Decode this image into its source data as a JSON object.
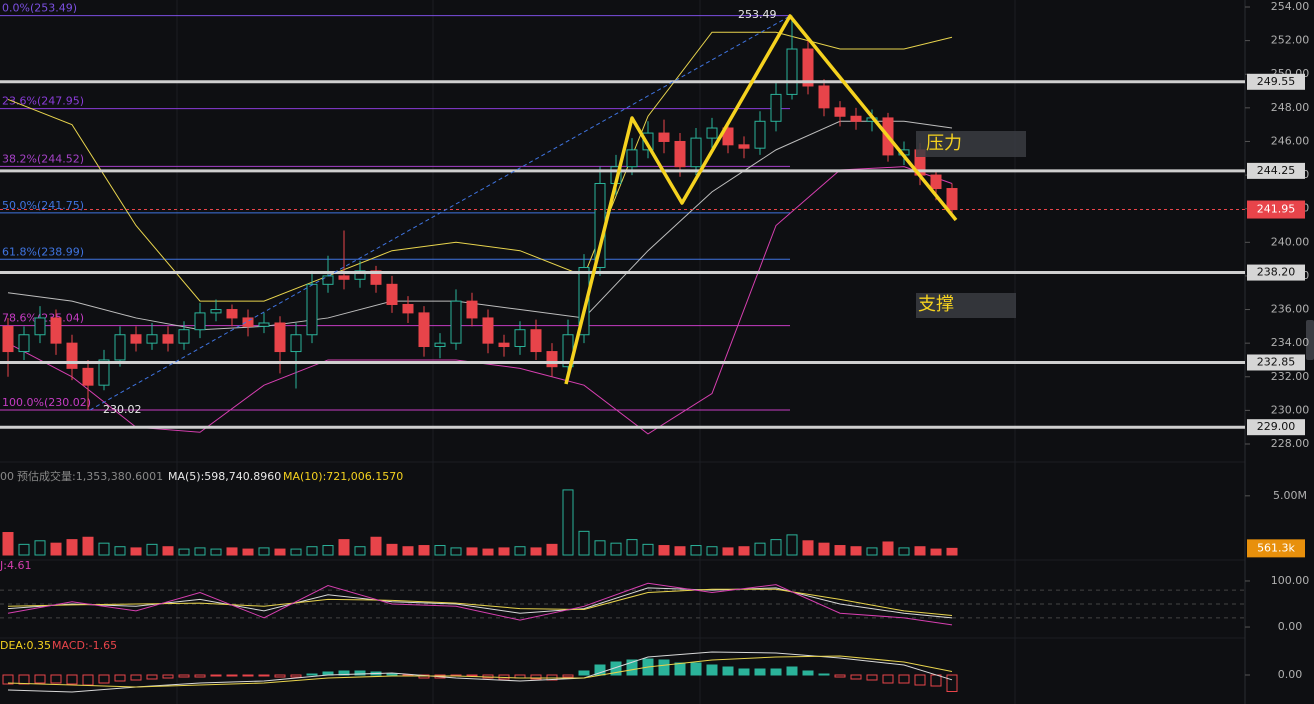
{
  "chart_data": [
    {
      "type": "candlestick",
      "up_color": "#2bb39a",
      "down_color": "#e8444a",
      "ylim": [
        228,
        254
      ],
      "yticks": [
        {
          "value": 228,
          "label": "228.00"
        },
        {
          "value": 230,
          "label": "230.00"
        },
        {
          "value": 232,
          "label": "232.00"
        },
        {
          "value": 234,
          "label": "234.00"
        },
        {
          "value": 236,
          "label": "236.00"
        },
        {
          "value": 238,
          "label": "238.00"
        },
        {
          "value": 240,
          "label": "240.00"
        },
        {
          "value": 242,
          "label": "242.00"
        },
        {
          "value": 244,
          "label": "244.00"
        },
        {
          "value": 246,
          "label": "246.00"
        },
        {
          "value": 248,
          "label": "248.00"
        },
        {
          "value": 250,
          "label": "250.00"
        },
        {
          "value": 252,
          "label": "252.00"
        },
        {
          "value": 254,
          "label": "254.00"
        }
      ],
      "candles": {
        "open": [
          235,
          233.5,
          234.5,
          235.5,
          234,
          232.5,
          231.5,
          233,
          234.5,
          234,
          234.5,
          234,
          234.8,
          235.8,
          236,
          235.5,
          235,
          235.2,
          233.5,
          234.5,
          237.5,
          238,
          237.8,
          238.3,
          237.5,
          236.3,
          235.8,
          233.8,
          234,
          236.5,
          235.5,
          234,
          233.8,
          234.8,
          233.5,
          232.6,
          234.5,
          238.5,
          243.5,
          244.5,
          245.5,
          246.5,
          246,
          244.5,
          246.2,
          246.8,
          245.8,
          245.6,
          247.2,
          248.8,
          251.5,
          249.3,
          248,
          247.5,
          247.2,
          247.4,
          245.2,
          245.5,
          244,
          243.2
        ],
        "high": [
          235.5,
          235,
          236.2,
          236,
          234.5,
          233,
          233.6,
          235,
          235,
          235.2,
          235,
          235.3,
          236.4,
          236.6,
          236.3,
          236,
          235.8,
          235.6,
          235.2,
          238.3,
          239.2,
          240.7,
          238.9,
          238.6,
          238,
          236.8,
          236.2,
          234.6,
          237.2,
          237,
          236,
          234.5,
          235.3,
          235.4,
          234,
          235.4,
          239.3,
          244.5,
          245.2,
          246.2,
          247.2,
          247.3,
          246.5,
          246.8,
          247.4,
          247.2,
          246.3,
          247.8,
          249.6,
          253.49,
          252,
          249.7,
          248.4,
          248,
          247.9,
          247.7,
          246,
          245.9,
          244.3,
          243.5
        ],
        "low": [
          232,
          233,
          234,
          233.3,
          231.8,
          230.02,
          231.2,
          232.6,
          233.5,
          233.6,
          233.5,
          233.6,
          234.3,
          235.3,
          235,
          234.4,
          234.6,
          232.2,
          231.3,
          234,
          237,
          237.2,
          237.3,
          237,
          235.8,
          235.2,
          233.2,
          233.1,
          233.6,
          235,
          233.4,
          233.2,
          233.3,
          233,
          232,
          232.2,
          234,
          238,
          242.8,
          244,
          245,
          245.3,
          243.9,
          244,
          245.6,
          245.3,
          245,
          245.2,
          246.6,
          248.5,
          248.8,
          247.5,
          246.9,
          246.7,
          246.6,
          244.8,
          244.6,
          243.4,
          242.5,
          241.6
        ],
        "close": [
          233.5,
          234.5,
          235.5,
          234,
          232.5,
          231.5,
          233,
          234.5,
          234,
          234.5,
          234,
          234.8,
          235.8,
          236,
          235.5,
          235,
          235.2,
          233.5,
          234.5,
          237.5,
          238,
          237.8,
          238.3,
          237.5,
          236.3,
          235.8,
          233.8,
          234,
          236.5,
          235.5,
          234,
          233.8,
          234.8,
          233.5,
          232.6,
          234.5,
          238.5,
          243.5,
          244.5,
          245.5,
          246.5,
          246,
          244.5,
          246.2,
          246.8,
          245.8,
          245.6,
          247.2,
          248.8,
          251.5,
          249.3,
          248,
          247.5,
          247.2,
          247.4,
          245.2,
          245.5,
          244,
          243.2,
          241.95
        ]
      },
      "bollinger": {
        "x": [
          0,
          4,
          8,
          12,
          16,
          20,
          24,
          28,
          32,
          36,
          40,
          44,
          48,
          52,
          56,
          59
        ],
        "lines": [
          {
            "color": "#e8d44d",
            "values": [
              248.5,
              247,
              241,
              236.5,
              236.5,
              238,
              239.5,
              240,
              239.5,
              238,
              247.5,
              252.5,
              252.5,
              251.5,
              251.5,
              252.2
            ]
          },
          {
            "color": "#bdbdbd",
            "values": [
              237,
              236.5,
              235.5,
              234.8,
              235,
              235.5,
              236.5,
              236.5,
              236,
              235.5,
              239.5,
              243,
              245.5,
              247.2,
              247.2,
              246.8
            ]
          },
          {
            "color": "#d63fb0",
            "values": [
              234,
              232,
              229,
              228.7,
              231.5,
              233,
              233,
              233,
              232.5,
              231.5,
              228.6,
              231,
              241,
              244.3,
              244.5,
              243.5
            ]
          }
        ]
      },
      "fib_levels": [
        {
          "label": "0.0%(253.49)",
          "value": 253.49,
          "color": "#7b4fe0"
        },
        {
          "label": "23.6%(247.95)",
          "value": 247.95,
          "color": "#8a3cd8"
        },
        {
          "label": "38.2%(244.52)",
          "value": 244.52,
          "color": "#a642c8"
        },
        {
          "label": "50.0%(241.75)",
          "value": 241.75,
          "color": "#3f74e0"
        },
        {
          "label": "61.8%(238.99)",
          "value": 238.99,
          "color": "#3f74e0"
        },
        {
          "label": "78.6%(235.04)",
          "value": 235.04,
          "color": "#c53cc3"
        },
        {
          "label": "100.0%(230.02)",
          "value": 230.02,
          "color": "#c53cc3"
        }
      ],
      "levels": [
        249.55,
        244.25,
        {
          "value": 238.2,
          "label": "238.20"
        },
        232.85,
        {
          "value": 229,
          "label": "229.00"
        }
      ],
      "last_price": 241.95,
      "peak_high": 253.49,
      "peak_low": 230.02,
      "annotations": [
        "压力",
        "支撑"
      ]
    },
    {
      "type": "bar",
      "header": [
        "00",
        "预估成交量:1,353,380.6001",
        "MA(5):598,740.8960",
        "MA(10):721,006.1570"
      ],
      "ylim": [
        0,
        6
      ],
      "yticks": [
        {
          "value": 5,
          "label": "5.00M"
        }
      ],
      "values": [
        1.9,
        0.9,
        1.2,
        1.0,
        1.3,
        1.5,
        1.0,
        0.7,
        0.6,
        0.9,
        0.7,
        0.5,
        0.6,
        0.5,
        0.6,
        0.5,
        0.6,
        0.5,
        0.5,
        0.7,
        0.8,
        1.3,
        0.7,
        1.5,
        0.9,
        0.7,
        0.8,
        0.8,
        0.6,
        0.6,
        0.5,
        0.6,
        0.7,
        0.6,
        0.9,
        5.5,
        2.0,
        1.2,
        1.0,
        1.3,
        0.9,
        0.8,
        0.7,
        0.8,
        0.7,
        0.6,
        0.7,
        1.0,
        1.3,
        1.7,
        1.2,
        1.0,
        0.8,
        0.7,
        0.6,
        1.1,
        0.6,
        0.7,
        0.5,
        0.5613
      ],
      "current": {
        "value": 0.5613,
        "label": "561.3k"
      }
    },
    {
      "type": "line",
      "label": "J:4.61",
      "ylim": [
        -39,
        139
      ],
      "yticks": [
        {
          "value": 100,
          "label": "100.00"
        },
        {
          "value": 0,
          "label": "0.00"
        }
      ],
      "ref_lines": [
        80,
        50,
        20
      ],
      "x": [
        0,
        4,
        8,
        12,
        16,
        20,
        24,
        28,
        32,
        36,
        40,
        44,
        48,
        52,
        56,
        59
      ],
      "series": [
        {
          "color": "#d8d8d8",
          "values": [
            40,
            50,
            45,
            60,
            35,
            70,
            55,
            50,
            30,
            40,
            85,
            80,
            85,
            50,
            30,
            20
          ]
        },
        {
          "color": "#e8d44d",
          "values": [
            45,
            48,
            50,
            52,
            45,
            60,
            58,
            52,
            40,
            38,
            75,
            82,
            82,
            60,
            35,
            25
          ]
        },
        {
          "color": "#d63fb0",
          "values": [
            30,
            55,
            35,
            75,
            20,
            90,
            50,
            45,
            15,
            45,
            95,
            75,
            92,
            30,
            20,
            4.61
          ]
        }
      ]
    },
    {
      "type": "macd",
      "labels": [
        "DEA:0.35",
        "MACD:-1.65"
      ],
      "ylim": [
        -2.5,
        2.5
      ],
      "yticks": [
        {
          "value": 0,
          "label": "0.00"
        }
      ],
      "histogram": [
        -0.9,
        -0.9,
        -0.8,
        -0.8,
        -0.9,
        -1.0,
        -0.8,
        -0.6,
        -0.5,
        -0.4,
        -0.3,
        -0.2,
        -0.2,
        -0.1,
        -0.1,
        -0.1,
        -0.1,
        -0.2,
        -0.2,
        0.1,
        0.3,
        0.4,
        0.4,
        0.3,
        0.1,
        -0.1,
        -0.3,
        -0.3,
        -0.1,
        -0.1,
        -0.3,
        -0.4,
        -0.3,
        -0.4,
        -0.5,
        -0.2,
        0.4,
        1.0,
        1.3,
        1.5,
        1.6,
        1.5,
        1.2,
        1.2,
        1.0,
        0.8,
        0.6,
        0.6,
        0.6,
        0.8,
        0.4,
        0.1,
        -0.2,
        -0.4,
        -0.5,
        -0.8,
        -0.8,
        -1.0,
        -1.1,
        -1.65
      ],
      "x": [
        0,
        4,
        8,
        12,
        16,
        20,
        24,
        28,
        32,
        36,
        40,
        44,
        48,
        52,
        56,
        59
      ],
      "lines": [
        {
          "color": "#d8d8d8",
          "values": [
            -1.5,
            -1.7,
            -1.2,
            -0.8,
            -0.6,
            0.0,
            0.2,
            -0.3,
            -0.6,
            -0.3,
            1.8,
            2.3,
            2.2,
            1.7,
            1.0,
            -0.48
          ]
        },
        {
          "color": "#e8d44d",
          "values": [
            -0.8,
            -1.0,
            -1.2,
            -1.0,
            -0.8,
            -0.3,
            -0.1,
            -0.1,
            -0.3,
            -0.3,
            0.8,
            1.5,
            1.8,
            1.9,
            1.3,
            0.35
          ]
        }
      ]
    }
  ]
}
